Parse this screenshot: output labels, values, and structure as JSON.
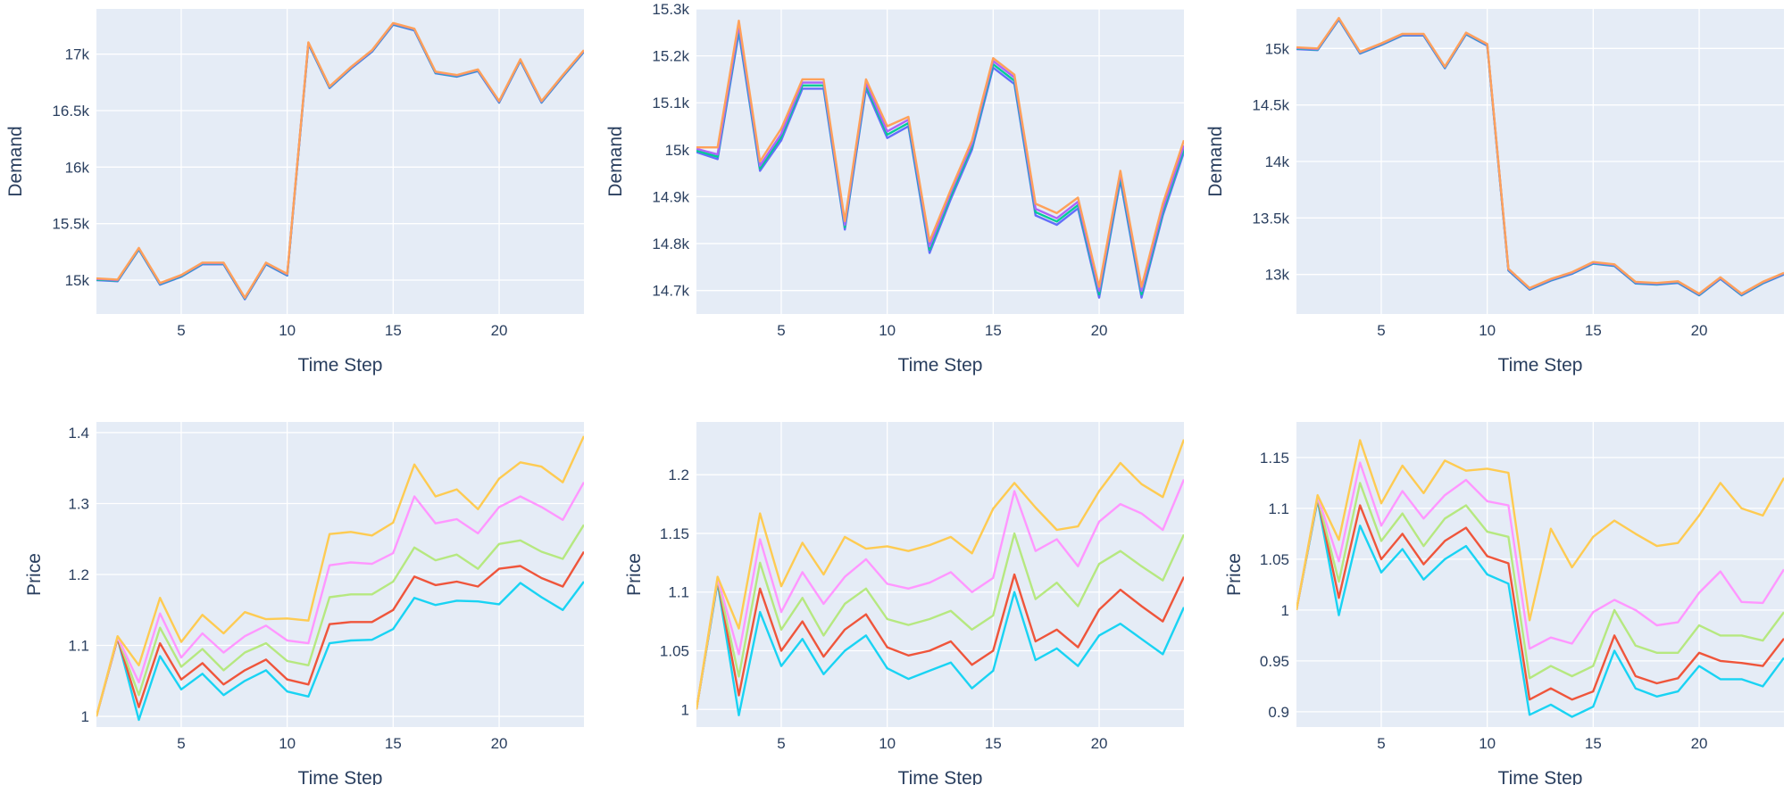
{
  "colors": {
    "plot_bg": "#e5ecf6",
    "grid": "#ffffff",
    "text": "#2a3f5f",
    "price_series": [
      "#19d3f3",
      "#ef553b",
      "#b6e880",
      "#ff97ff",
      "#fecb52"
    ],
    "demand_series": [
      "#636efa",
      "#00cc96",
      "#ab63fa",
      "#ffa15a"
    ]
  },
  "chart_data": [
    {
      "type": "line",
      "xlabel": "Time Step",
      "ylabel": "Demand",
      "xlim": [
        1,
        24
      ],
      "ylim": [
        14700,
        17400
      ],
      "xticks": [
        5,
        10,
        15,
        20
      ],
      "yticks": [
        15000,
        15500,
        16000,
        16500,
        17000
      ],
      "ytick_labels": [
        "15k",
        "15.5k",
        "16k",
        "16.5k",
        "17k"
      ],
      "grid": true,
      "x": [
        1,
        2,
        3,
        4,
        5,
        6,
        7,
        8,
        9,
        10,
        11,
        12,
        13,
        14,
        15,
        16,
        17,
        18,
        19,
        20,
        21,
        22,
        23,
        24
      ],
      "series": [
        {
          "values": [
            15000,
            14990,
            15270,
            14960,
            15030,
            15140,
            15140,
            14830,
            15140,
            15040,
            17090,
            16700,
            16870,
            17020,
            17260,
            17210,
            16830,
            16800,
            16850,
            16570,
            16940,
            16570,
            16800,
            17020
          ]
        },
        {
          "values": [
            15005,
            14995,
            15275,
            14965,
            15035,
            15145,
            15145,
            14835,
            15145,
            15045,
            17095,
            16705,
            16875,
            17025,
            17265,
            17215,
            16835,
            16805,
            16855,
            16575,
            16945,
            16575,
            16805,
            17025
          ]
        },
        {
          "values": [
            15010,
            15000,
            15280,
            14970,
            15040,
            15150,
            15150,
            14840,
            15150,
            15050,
            17100,
            16710,
            16880,
            17030,
            17270,
            17220,
            16840,
            16810,
            16860,
            16580,
            16950,
            16580,
            16810,
            17030
          ]
        },
        {
          "values": [
            15015,
            15005,
            15285,
            14975,
            15045,
            15155,
            15155,
            14845,
            15155,
            15055,
            17105,
            16715,
            16885,
            17035,
            17275,
            17225,
            16845,
            16815,
            16865,
            16585,
            16955,
            16585,
            16815,
            17035
          ]
        }
      ]
    },
    {
      "type": "line",
      "xlabel": "Time Step",
      "ylabel": "Demand",
      "xlim": [
        1,
        24
      ],
      "ylim": [
        14650,
        15300
      ],
      "xticks": [
        5,
        10,
        15,
        20
      ],
      "yticks": [
        14700,
        14800,
        14900,
        15000,
        15100,
        15200,
        15300
      ],
      "ytick_labels": [
        "14.7k",
        "14.8k",
        "14.9k",
        "15k",
        "15.1k",
        "15.2k",
        "15.3k"
      ],
      "grid": true,
      "x": [
        1,
        2,
        3,
        4,
        5,
        6,
        7,
        8,
        9,
        10,
        11,
        12,
        13,
        14,
        15,
        16,
        17,
        18,
        19,
        20,
        21,
        22,
        23,
        24
      ],
      "series": [
        {
          "values": [
            14995,
            14980,
            15250,
            14955,
            15020,
            15130,
            15130,
            14830,
            15130,
            15025,
            15050,
            14780,
            14895,
            15000,
            15175,
            15140,
            14860,
            14840,
            14875,
            14685,
            14935,
            14685,
            14860,
            14995
          ]
        },
        {
          "values": [
            14998,
            14985,
            15258,
            14960,
            15027,
            15137,
            15137,
            14835,
            15137,
            15032,
            15057,
            14787,
            14902,
            15007,
            15182,
            15147,
            14867,
            14847,
            14882,
            14692,
            14942,
            14692,
            14867,
            15002
          ]
        },
        {
          "values": [
            15002,
            14990,
            15265,
            14966,
            15034,
            15143,
            15143,
            14840,
            15143,
            15039,
            15064,
            14794,
            14909,
            15013,
            15189,
            15154,
            14874,
            14854,
            14889,
            14699,
            14949,
            14699,
            14874,
            15009
          ]
        },
        {
          "values": [
            15005,
            15005,
            15275,
            14975,
            15045,
            15150,
            15150,
            14848,
            15150,
            15050,
            15070,
            14805,
            14915,
            15020,
            15195,
            15160,
            14885,
            14865,
            14898,
            14708,
            14955,
            14708,
            14885,
            15020
          ]
        }
      ]
    },
    {
      "type": "line",
      "xlabel": "Time Step",
      "ylabel": "Demand",
      "xlim": [
        1,
        24
      ],
      "ylim": [
        12650,
        15350
      ],
      "xticks": [
        5,
        10,
        15,
        20
      ],
      "yticks": [
        13000,
        13500,
        14000,
        14500,
        15000
      ],
      "ytick_labels": [
        "13k",
        "13.5k",
        "14k",
        "14.5k",
        "15k"
      ],
      "grid": true,
      "x": [
        1,
        2,
        3,
        4,
        5,
        6,
        7,
        8,
        9,
        10,
        11,
        12,
        13,
        14,
        15,
        16,
        17,
        18,
        19,
        20,
        21,
        22,
        23,
        24
      ],
      "series": [
        {
          "values": [
            14995,
            14985,
            15255,
            14955,
            15030,
            15115,
            15115,
            14825,
            15125,
            15025,
            13035,
            12865,
            12945,
            13005,
            13095,
            13075,
            12920,
            12910,
            12925,
            12815,
            12960,
            12815,
            12920,
            13000
          ]
        },
        {
          "values": [
            15000,
            14990,
            15260,
            14960,
            15035,
            15120,
            15120,
            14830,
            15130,
            15030,
            13040,
            12870,
            12950,
            13010,
            13100,
            13080,
            12925,
            12915,
            12930,
            12820,
            12965,
            12820,
            12925,
            13005
          ]
        },
        {
          "values": [
            15005,
            14995,
            15265,
            14965,
            15040,
            15125,
            15125,
            14835,
            15135,
            15035,
            13045,
            12875,
            12955,
            13015,
            13105,
            13085,
            12930,
            12920,
            12935,
            12825,
            12970,
            12825,
            12930,
            13010
          ]
        },
        {
          "values": [
            15010,
            15000,
            15270,
            14970,
            15045,
            15130,
            15130,
            14840,
            15140,
            15040,
            13050,
            12880,
            12960,
            13020,
            13110,
            13090,
            12935,
            12925,
            12940,
            12830,
            12975,
            12830,
            12935,
            13015
          ]
        }
      ]
    },
    {
      "type": "line",
      "xlabel": "Time Step",
      "ylabel": "Price",
      "xlim": [
        1,
        24
      ],
      "ylim": [
        0.985,
        1.415
      ],
      "xticks": [
        5,
        10,
        15,
        20
      ],
      "yticks": [
        1,
        1.1,
        1.2,
        1.3,
        1.4
      ],
      "ytick_labels": [
        "1",
        "1.1",
        "1.2",
        "1.3",
        "1.4"
      ],
      "grid": true,
      "x": [
        1,
        2,
        3,
        4,
        5,
        6,
        7,
        8,
        9,
        10,
        11,
        12,
        13,
        14,
        15,
        16,
        17,
        18,
        19,
        20,
        21,
        22,
        23,
        24
      ],
      "series": [
        {
          "values": [
            1.0,
            1.11,
            0.995,
            1.085,
            1.038,
            1.06,
            1.03,
            1.05,
            1.065,
            1.035,
            1.028,
            1.103,
            1.107,
            1.108,
            1.123,
            1.167,
            1.157,
            1.163,
            1.162,
            1.158,
            1.188,
            1.168,
            1.15,
            1.19
          ]
        },
        {
          "values": [
            1.0,
            1.11,
            1.013,
            1.103,
            1.052,
            1.075,
            1.045,
            1.065,
            1.08,
            1.052,
            1.045,
            1.13,
            1.133,
            1.133,
            1.15,
            1.197,
            1.185,
            1.19,
            1.183,
            1.208,
            1.212,
            1.195,
            1.183,
            1.232
          ]
        },
        {
          "values": [
            1.0,
            1.112,
            1.03,
            1.125,
            1.07,
            1.095,
            1.065,
            1.09,
            1.103,
            1.078,
            1.072,
            1.168,
            1.172,
            1.172,
            1.19,
            1.238,
            1.22,
            1.228,
            1.208,
            1.243,
            1.248,
            1.232,
            1.222,
            1.27
          ]
        },
        {
          "values": [
            1.0,
            1.112,
            1.048,
            1.145,
            1.083,
            1.117,
            1.09,
            1.113,
            1.128,
            1.107,
            1.103,
            1.213,
            1.217,
            1.215,
            1.23,
            1.31,
            1.272,
            1.278,
            1.258,
            1.295,
            1.31,
            1.295,
            1.277,
            1.33
          ]
        },
        {
          "values": [
            1.0,
            1.113,
            1.072,
            1.167,
            1.105,
            1.143,
            1.117,
            1.147,
            1.137,
            1.138,
            1.135,
            1.257,
            1.26,
            1.255,
            1.273,
            1.355,
            1.31,
            1.32,
            1.292,
            1.335,
            1.358,
            1.352,
            1.33,
            1.395
          ]
        }
      ]
    },
    {
      "type": "line",
      "xlabel": "Time Step",
      "ylabel": "Price",
      "xlim": [
        1,
        24
      ],
      "ylim": [
        0.985,
        1.245
      ],
      "xticks": [
        5,
        10,
        15,
        20
      ],
      "yticks": [
        1,
        1.05,
        1.1,
        1.15,
        1.2
      ],
      "ytick_labels": [
        "1",
        "1.05",
        "1.1",
        "1.15",
        "1.2"
      ],
      "grid": true,
      "x": [
        1,
        2,
        3,
        4,
        5,
        6,
        7,
        8,
        9,
        10,
        11,
        12,
        13,
        14,
        15,
        16,
        17,
        18,
        19,
        20,
        21,
        22,
        23,
        24
      ],
      "series": [
        {
          "values": [
            1.0,
            1.108,
            0.995,
            1.083,
            1.037,
            1.06,
            1.03,
            1.05,
            1.063,
            1.035,
            1.026,
            1.033,
            1.04,
            1.018,
            1.033,
            1.1,
            1.042,
            1.052,
            1.037,
            1.063,
            1.073,
            1.06,
            1.047,
            1.087
          ]
        },
        {
          "values": [
            1.0,
            1.11,
            1.012,
            1.103,
            1.05,
            1.075,
            1.045,
            1.068,
            1.081,
            1.053,
            1.046,
            1.05,
            1.058,
            1.038,
            1.05,
            1.115,
            1.058,
            1.068,
            1.053,
            1.085,
            1.102,
            1.088,
            1.075,
            1.113
          ]
        },
        {
          "values": [
            1.0,
            1.111,
            1.028,
            1.125,
            1.068,
            1.095,
            1.063,
            1.09,
            1.103,
            1.077,
            1.072,
            1.077,
            1.084,
            1.068,
            1.08,
            1.15,
            1.094,
            1.108,
            1.088,
            1.124,
            1.135,
            1.122,
            1.11,
            1.149
          ]
        },
        {
          "values": [
            1.0,
            1.112,
            1.047,
            1.145,
            1.083,
            1.117,
            1.09,
            1.113,
            1.128,
            1.107,
            1.103,
            1.108,
            1.117,
            1.1,
            1.112,
            1.186,
            1.135,
            1.145,
            1.122,
            1.16,
            1.175,
            1.167,
            1.153,
            1.196
          ]
        },
        {
          "values": [
            1.0,
            1.113,
            1.069,
            1.167,
            1.105,
            1.142,
            1.115,
            1.147,
            1.137,
            1.139,
            1.135,
            1.14,
            1.147,
            1.133,
            1.171,
            1.193,
            1.172,
            1.153,
            1.156,
            1.186,
            1.21,
            1.192,
            1.181,
            1.23
          ]
        }
      ]
    },
    {
      "type": "line",
      "xlabel": "Time Step",
      "ylabel": "Price",
      "xlim": [
        1,
        24
      ],
      "ylim": [
        0.885,
        1.185
      ],
      "xticks": [
        5,
        10,
        15,
        20
      ],
      "yticks": [
        0.9,
        0.95,
        1,
        1.05,
        1.1,
        1.15
      ],
      "ytick_labels": [
        "0.9",
        "0.95",
        "1",
        "1.05",
        "1.1",
        "1.15"
      ],
      "grid": true,
      "x": [
        1,
        2,
        3,
        4,
        5,
        6,
        7,
        8,
        9,
        10,
        11,
        12,
        13,
        14,
        15,
        16,
        17,
        18,
        19,
        20,
        21,
        22,
        23,
        24
      ],
      "series": [
        {
          "values": [
            1.0,
            1.108,
            0.995,
            1.083,
            1.037,
            1.06,
            1.03,
            1.05,
            1.063,
            1.035,
            1.026,
            0.897,
            0.907,
            0.895,
            0.905,
            0.96,
            0.923,
            0.915,
            0.92,
            0.945,
            0.932,
            0.932,
            0.925,
            0.953
          ]
        },
        {
          "values": [
            1.0,
            1.11,
            1.012,
            1.103,
            1.05,
            1.075,
            1.045,
            1.068,
            1.081,
            1.053,
            1.046,
            0.912,
            0.923,
            0.912,
            0.92,
            0.975,
            0.935,
            0.928,
            0.933,
            0.958,
            0.95,
            0.948,
            0.945,
            0.972
          ]
        },
        {
          "values": [
            1.0,
            1.111,
            1.028,
            1.125,
            1.068,
            1.095,
            1.063,
            1.09,
            1.103,
            1.077,
            1.072,
            0.933,
            0.945,
            0.935,
            0.945,
            1.0,
            0.965,
            0.958,
            0.958,
            0.985,
            0.975,
            0.975,
            0.97,
            0.998
          ]
        },
        {
          "values": [
            1.0,
            1.112,
            1.048,
            1.145,
            1.083,
            1.117,
            1.09,
            1.113,
            1.128,
            1.107,
            1.103,
            0.962,
            0.973,
            0.967,
            0.998,
            1.01,
            1.0,
            0.985,
            0.988,
            1.017,
            1.038,
            1.008,
            1.007,
            1.04
          ]
        },
        {
          "values": [
            1.0,
            1.113,
            1.069,
            1.167,
            1.105,
            1.142,
            1.115,
            1.147,
            1.137,
            1.139,
            1.135,
            0.99,
            1.08,
            1.042,
            1.072,
            1.088,
            1.075,
            1.063,
            1.066,
            1.093,
            1.125,
            1.1,
            1.093,
            1.13
          ]
        }
      ]
    }
  ]
}
